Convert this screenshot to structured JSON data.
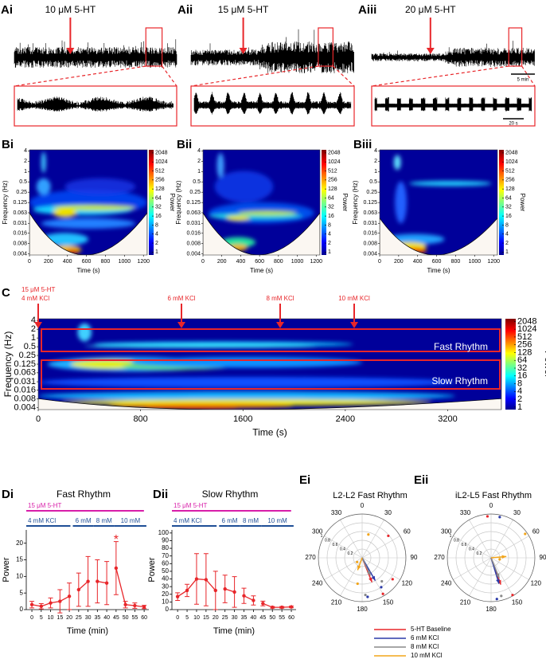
{
  "chart_data": [
    {
      "type": "trace",
      "label": "Ai",
      "title": "10 μM 5-HT"
    },
    {
      "type": "trace",
      "label": "Aii",
      "title": "15 μM 5-HT"
    },
    {
      "type": "trace",
      "label": "Aiii",
      "title": "20 μM 5-HT",
      "scale_bars": [
        "5 min",
        "20 s"
      ]
    },
    {
      "type": "spectrogram",
      "label": "Bi",
      "xlabel": "Time (s)",
      "ylabel": "Frequency (Hz)",
      "xlim": [
        0,
        1240
      ],
      "xticks": [
        0,
        200,
        400,
        600,
        800,
        1000,
        1200
      ],
      "ylim": [
        0.0037,
        4.3
      ],
      "yticks": [
        4,
        2,
        1,
        0.5,
        0.25,
        0.125,
        0.063,
        0.031,
        0.016,
        0.008,
        0.004
      ],
      "log_y": true,
      "colorbar_label": "Power",
      "clim": [
        0.8,
        2600
      ],
      "colorbar_ticks": [
        2048,
        1024,
        512,
        256,
        128,
        64,
        32,
        16,
        8,
        4,
        2,
        1
      ]
    },
    {
      "type": "spectrogram",
      "label": "Bii",
      "xlabel": "Time (s)",
      "ylabel": "Frequency (Hz)",
      "xlim": [
        0,
        1240
      ],
      "xticks": [
        0,
        200,
        400,
        600,
        800,
        1000,
        1200
      ],
      "ylim": [
        0.0037,
        4.3
      ],
      "yticks": [
        4,
        2,
        1,
        0.5,
        0.25,
        0.125,
        0.063,
        0.031,
        0.016,
        0.008,
        0.004
      ],
      "log_y": true,
      "colorbar_label": "Power",
      "clim": [
        0.8,
        2600
      ],
      "colorbar_ticks": [
        2048,
        1024,
        512,
        256,
        128,
        64,
        32,
        16,
        8,
        4,
        2,
        1
      ]
    },
    {
      "type": "spectrogram",
      "label": "Biii",
      "xlabel": "Time (s)",
      "ylabel": "Frequency (Hz)",
      "xlim": [
        0,
        1240
      ],
      "xticks": [
        0,
        200,
        400,
        600,
        800,
        1000,
        1200
      ],
      "ylim": [
        0.0037,
        4.3
      ],
      "yticks": [
        4,
        2,
        1,
        0.5,
        0.25,
        0.125,
        0.063,
        0.031,
        0.016,
        0.008,
        0.004
      ],
      "log_y": true,
      "colorbar_label": "Power",
      "clim": [
        0.8,
        2600
      ],
      "colorbar_ticks": [
        2048,
        1024,
        512,
        256,
        128,
        64,
        32,
        16,
        8,
        4,
        2,
        1
      ]
    },
    {
      "type": "spectrogram",
      "label": "C",
      "xlabel": "Time (s)",
      "ylabel": "Frequency (Hz)",
      "xlim": [
        0,
        3620
      ],
      "xticks": [
        0,
        800,
        1600,
        2400,
        3200
      ],
      "ylim": [
        0.0034,
        4.6
      ],
      "yticks": [
        4,
        2,
        1,
        0.5,
        0.25,
        0.125,
        0.063,
        0.031,
        0.016,
        0.008,
        0.004
      ],
      "log_y": true,
      "colorbar_label": "Power",
      "clim": [
        0.8,
        2600
      ],
      "colorbar_ticks": [
        2048,
        1024,
        512,
        256,
        128,
        64,
        32,
        16,
        8,
        4,
        2,
        1
      ],
      "annotations": [
        "15 μM 5-HT",
        "4 mM KCl",
        "6 mM KCl",
        "8 mM KCl",
        "10 mM KCl"
      ],
      "bands": [
        "Fast Rhythm",
        "Slow Rhythm"
      ]
    },
    {
      "type": "line",
      "label": "Di",
      "title": "Fast Rhythm",
      "xlabel": "Time (min)",
      "ylabel": "Power",
      "xlim": [
        -3,
        62.5
      ],
      "xticks": [
        0,
        5,
        10,
        15,
        20,
        25,
        30,
        35,
        40,
        45,
        50,
        55,
        60
      ],
      "ylim": [
        0,
        24
      ],
      "yticks": [
        0,
        5,
        10,
        15,
        20
      ],
      "protocol": [
        "15 μM 5-HT",
        "4 mM KCl",
        "6 mM",
        "8 mM",
        "10 mM"
      ],
      "series": [
        {
          "color": "#e8262a",
          "x": [
            0,
            5,
            10,
            15,
            20
          ],
          "values": [
            1.5,
            1,
            2,
            2.5,
            4
          ],
          "errors": [
            1,
            0.8,
            1.5,
            3.5,
            4
          ]
        },
        {
          "color": "#e8262a",
          "x": [
            25,
            30
          ],
          "values": [
            6,
            8.5
          ],
          "errors": [
            5,
            7.5
          ]
        },
        {
          "color": "#e8262a",
          "x": [
            35,
            40
          ],
          "values": [
            8.5,
            8
          ],
          "errors": [
            6.5,
            6.5
          ]
        },
        {
          "color": "#e8262a",
          "x": [
            45,
            50,
            55,
            60
          ],
          "values": [
            12.5,
            1.5,
            1.2,
            0.8
          ],
          "errors": [
            8,
            1,
            0.8,
            0.5
          ]
        }
      ],
      "annotations": [
        {
          "text": "*",
          "x": 45
        }
      ]
    },
    {
      "type": "line",
      "label": "Dii",
      "title": "Slow Rhythm",
      "xlabel": "Time (min)",
      "ylabel": "Power",
      "xlim": [
        -3,
        62.5
      ],
      "xticks": [
        0,
        5,
        10,
        15,
        20,
        25,
        30,
        35,
        40,
        45,
        50,
        55,
        60
      ],
      "ylim": [
        0,
        104
      ],
      "yticks": [
        0,
        10,
        20,
        30,
        40,
        50,
        60,
        70,
        80,
        90,
        100
      ],
      "protocol": [
        "15 μM 5-HT",
        "4 mM KCl",
        "6 mM",
        "8 mM",
        "10 mM"
      ],
      "series": [
        {
          "color": "#e8262a",
          "x": [
            0,
            5,
            10,
            15,
            20
          ],
          "values": [
            17,
            25,
            40,
            39,
            25
          ],
          "errors": [
            5,
            8,
            33,
            34,
            25
          ]
        },
        {
          "color": "#e8262a",
          "x": [
            25,
            30
          ],
          "values": [
            27,
            23
          ],
          "errors": [
            18,
            20
          ]
        },
        {
          "color": "#e8262a",
          "x": [
            35,
            40
          ],
          "values": [
            18,
            12
          ],
          "errors": [
            10,
            6
          ]
        },
        {
          "color": "#e8262a",
          "x": [
            45,
            50,
            55,
            60
          ],
          "values": [
            8,
            3,
            3,
            3.5
          ],
          "errors": [
            3,
            1,
            1,
            1
          ]
        }
      ]
    },
    {
      "type": "polar",
      "label": "Ei",
      "title": "L2-L2 Fast Rhythm",
      "thetaticks": [
        0,
        30,
        60,
        90,
        120,
        150,
        180,
        210,
        240,
        270,
        300,
        330
      ],
      "rlim": [
        0,
        1
      ],
      "rticks": [
        0.2,
        0.4,
        0.6,
        0.8,
        1
      ],
      "legend": "bottom",
      "series": [
        {
          "name": "5-HT Baseline",
          "color": "#e8262a",
          "mean_theta": 158,
          "mean_r": 0.6,
          "theta": [
            50,
            125,
            150
          ],
          "r": [
            0.78,
            0.85,
            0.95
          ]
        },
        {
          "name": "6 mM KCl",
          "color": "#2b3aa8",
          "mean_theta": 150,
          "mean_r": 0.6,
          "theta": [
            147,
            172
          ],
          "r": [
            0.8,
            0.9
          ]
        },
        {
          "name": "8 mM KCl",
          "color": "#8a8a8a",
          "mean_theta": 155,
          "mean_r": 0.45,
          "theta": [
            140,
            175
          ],
          "r": [
            0.7,
            0.85
          ]
        },
        {
          "name": "10 mM KCl",
          "color": "#f2a51a",
          "mean_theta": 200,
          "mean_r": 0.3,
          "theta": [
            15,
            230,
            190
          ],
          "r": [
            0.55,
            0.15,
            0.6
          ]
        }
      ]
    },
    {
      "type": "polar",
      "label": "Eii",
      "title": "iL2-L5 Fast Rhythm",
      "thetaticks": [
        0,
        30,
        60,
        90,
        120,
        150,
        180,
        210,
        240,
        270,
        300,
        330
      ],
      "rlim": [
        0,
        1
      ],
      "rticks": [
        0.2,
        0.4,
        0.6,
        0.8,
        1
      ],
      "series": [
        {
          "color": "#e8262a",
          "mean_theta": 160,
          "mean_r": 0.65,
          "theta": [
            355,
            150
          ],
          "r": [
            0.95,
            0.98
          ]
        },
        {
          "color": "#2b3aa8",
          "mean_theta": 163,
          "mean_r": 0.62,
          "theta": [
            12,
            172
          ],
          "r": [
            0.95,
            0.95
          ]
        },
        {
          "color": "#8a8a8a",
          "mean_theta": 158,
          "mean_r": 0.5,
          "theta": [
            165
          ],
          "r": [
            0.9
          ]
        },
        {
          "color": "#f2a51a",
          "mean_theta": 85,
          "mean_r": 0.35,
          "theta": [
            55,
            100
          ],
          "r": [
            0.95,
            0.2
          ]
        }
      ]
    }
  ]
}
